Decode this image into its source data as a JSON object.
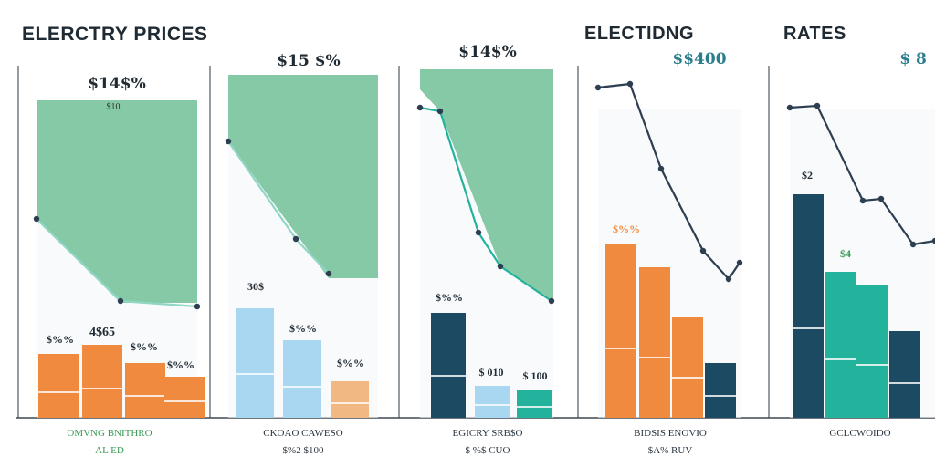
{
  "header": {
    "title_left": "ELERCTRY PRICES",
    "title_mid": "ELECTIDNG",
    "title_right": "RATES"
  },
  "colors": {
    "background": "#ffffff",
    "panel_fill": "#f4f7f8",
    "green_area": "#7cc4a0",
    "orange": "#ef8a3e",
    "light_orange": "#f2b884",
    "light_blue": "#a9d6f0",
    "navy": "#1c4a63",
    "teal": "#23b39c",
    "teal_dark": "#2a9a8c",
    "line": "#2c3e50",
    "label_green": "#3a9a55"
  },
  "chart_data": [
    {
      "type": "bar",
      "panel": 1,
      "area_label": "$14$%",
      "area_sublabel": "$10",
      "group_label": "4$65",
      "bar_labels": [
        "$%%",
        "$%%",
        "$%%"
      ],
      "bars": [
        {
          "value": 70,
          "color": "orange"
        },
        {
          "value": 80,
          "color": "orange"
        },
        {
          "value": 60,
          "color": "orange"
        },
        {
          "value": 45,
          "color": "orange"
        }
      ],
      "line": [
        240,
        330,
        335
      ],
      "footer_1": "OMVNG BNITHRO",
      "footer_2": "AL ED"
    },
    {
      "type": "bar",
      "panel": 2,
      "area_label": "$15 $%",
      "bar_labels": [
        "30$",
        "$%%",
        "$%%"
      ],
      "bars": [
        {
          "value": 120,
          "color": "light_blue"
        },
        {
          "value": 85,
          "color": "light_blue"
        },
        {
          "value": 40,
          "color": "light_orange"
        }
      ],
      "footer_1": "CKOAO CAWESO",
      "footer_2": "$%2 $100"
    },
    {
      "type": "bar",
      "panel": 3,
      "area_label": "$14$%",
      "bar_labels": [
        "$%%",
        "$ 010",
        "$ 100"
      ],
      "bars": [
        {
          "value": 115,
          "color": "navy"
        },
        {
          "value": 35,
          "color": "light_blue"
        },
        {
          "value": 30,
          "color": "teal"
        }
      ],
      "footer_1": "EGICRY SRB$O",
      "footer_2": "$ %$ CUO"
    },
    {
      "type": "bar",
      "panel": 4,
      "area_label": "$$400",
      "bar_labels": [
        "$%%"
      ],
      "bars": [
        {
          "value": 190,
          "color": "orange"
        },
        {
          "value": 165,
          "color": "orange"
        },
        {
          "value": 110,
          "color": "orange"
        },
        {
          "value": 60,
          "color": "navy"
        }
      ],
      "footer_1": "BIDSIS ENOVIO",
      "footer_2": "$A% RUV"
    },
    {
      "type": "bar",
      "panel": 5,
      "area_label": "$ 8",
      "bar_labels": [
        "$2",
        "$4"
      ],
      "bars": [
        {
          "value": 245,
          "color": "navy"
        },
        {
          "value": 160,
          "color": "teal"
        },
        {
          "value": 145,
          "color": "teal"
        },
        {
          "value": 95,
          "color": "navy"
        }
      ],
      "footer_1": "GCLCWOIDO"
    }
  ]
}
